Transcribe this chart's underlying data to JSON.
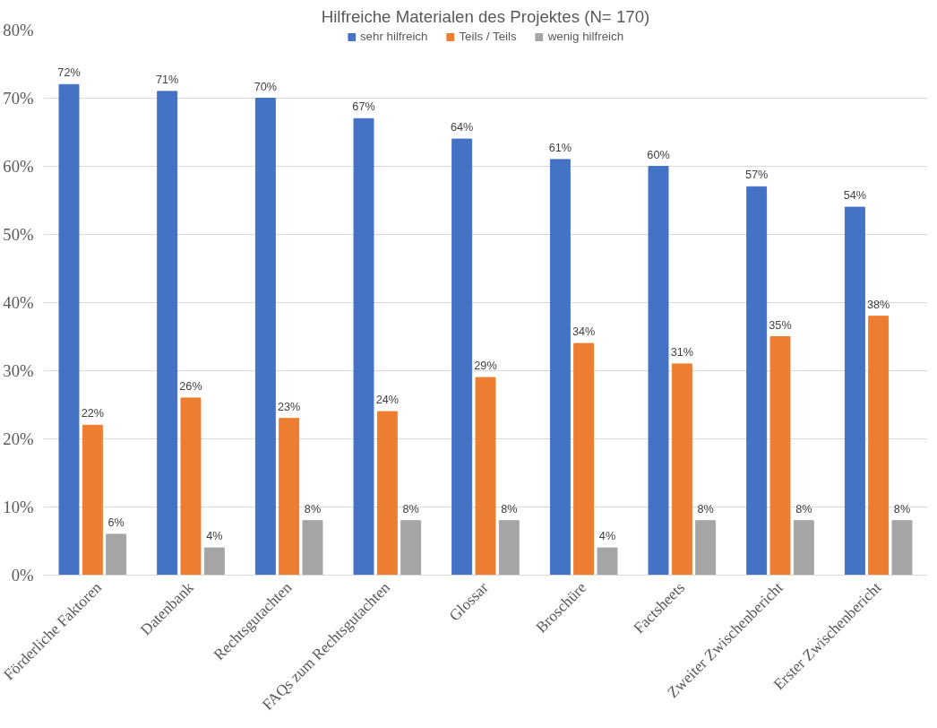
{
  "chart_data": {
    "type": "bar",
    "title": "Hilfreiche Materialen des Projektes (N= 170)",
    "categories": [
      "Förderliche Faktoren",
      "Datenbank",
      "Rechtsgutachten",
      "FAQs zum Rechtsgutachten",
      "Glossar",
      "Broschüre",
      "Factsheets",
      "Zweiter Zwischenbericht",
      "Erster Zwischenbericht"
    ],
    "series": [
      {
        "name": "sehr hilfreich",
        "color": "#4472c4",
        "values": [
          72,
          71,
          70,
          67,
          64,
          61,
          60,
          57,
          54
        ],
        "value_labels": [
          "72%",
          "71%",
          "70%",
          "67%",
          "64%",
          "61%",
          "60%",
          "57%",
          "54%"
        ]
      },
      {
        "name": "Teils / Teils",
        "color": "#ed7d31",
        "values": [
          22,
          26,
          23,
          24,
          29,
          34,
          31,
          35,
          38
        ],
        "value_labels": [
          "22%",
          "26%",
          "23%",
          "24%",
          "29%",
          "34%",
          "31%",
          "35%",
          "38%"
        ]
      },
      {
        "name": "wenig hilfreich",
        "color": "#a5a5a5",
        "values": [
          6,
          4,
          8,
          8,
          8,
          4,
          8,
          8,
          8
        ],
        "value_labels": [
          "6%",
          "4%",
          "8%",
          "8%",
          "8%",
          "4%",
          "8%",
          "8%",
          "8%"
        ]
      }
    ],
    "ylim": [
      0,
      80
    ],
    "yticks": [
      {
        "value": 0,
        "label": "0%"
      },
      {
        "value": 10,
        "label": "10%"
      },
      {
        "value": 20,
        "label": "20%"
      },
      {
        "value": 30,
        "label": "30%"
      },
      {
        "value": 40,
        "label": "40%"
      },
      {
        "value": 50,
        "label": "50%"
      },
      {
        "value": 60,
        "label": "60%"
      },
      {
        "value": 70,
        "label": "70%"
      },
      {
        "value": 80,
        "label": "80%"
      }
    ],
    "grid": "y",
    "legend": "top"
  }
}
